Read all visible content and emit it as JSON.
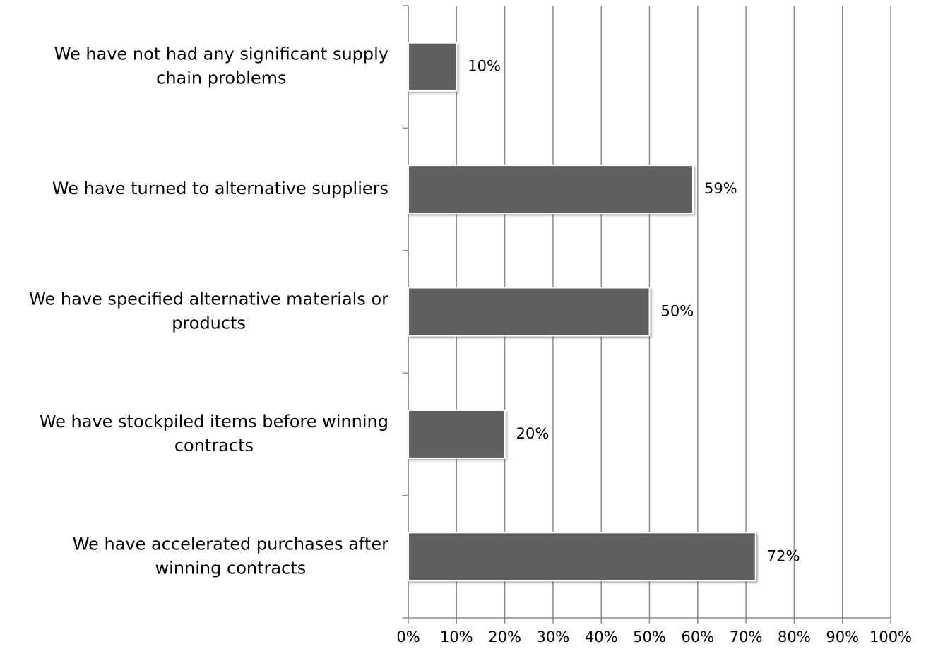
{
  "chart_data": {
    "type": "bar",
    "orientation": "horizontal",
    "categories": [
      "We have not had any significant supply chain problems",
      "We have turned to alternative suppliers",
      "We have specified alternative materials or products",
      "We have stockpiled items before winning contracts",
      "We have accelerated purchases after winning contracts"
    ],
    "values": [
      10,
      59,
      50,
      20,
      72
    ],
    "value_labels": [
      "10%",
      "59%",
      "50%",
      "20%",
      "72%"
    ],
    "color": "#606060",
    "xlim": [
      0,
      100
    ],
    "xticks": [
      {
        "value": 0,
        "label": "0%"
      },
      {
        "value": 10,
        "label": "10%"
      },
      {
        "value": 20,
        "label": "20%"
      },
      {
        "value": 30,
        "label": "30%"
      },
      {
        "value": 40,
        "label": "40%"
      },
      {
        "value": 50,
        "label": "50%"
      },
      {
        "value": 60,
        "label": "60%"
      },
      {
        "value": 70,
        "label": "70%"
      },
      {
        "value": 80,
        "label": "80%"
      },
      {
        "value": 90,
        "label": "90%"
      },
      {
        "value": 100,
        "label": "100%"
      }
    ],
    "grid": true
  }
}
